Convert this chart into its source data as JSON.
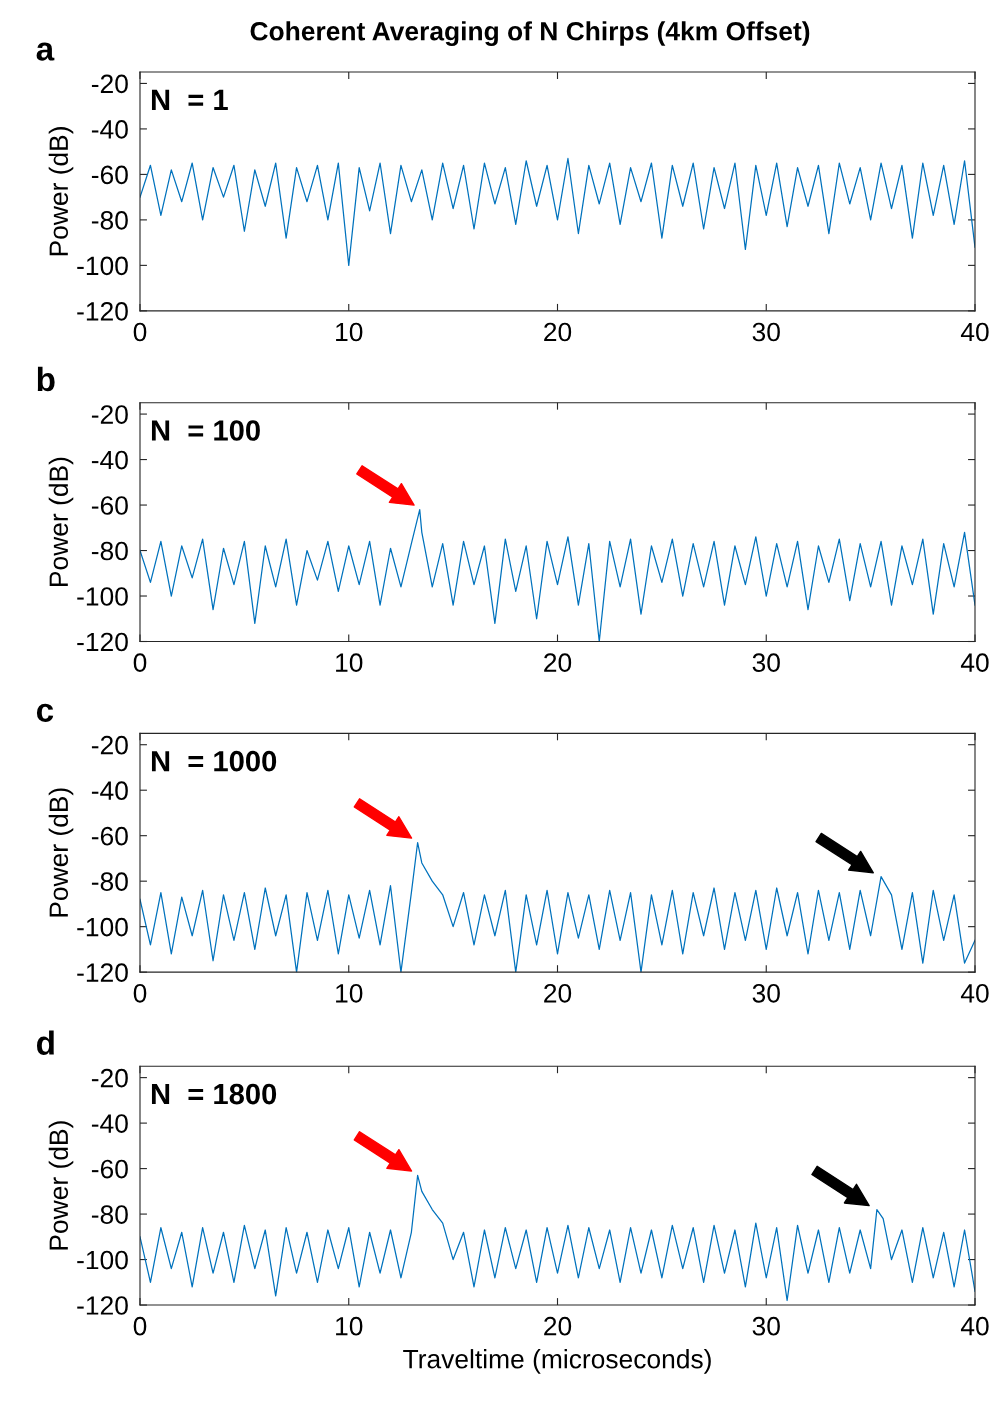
{
  "chart_data": [
    {
      "type": "line",
      "title": "Coherent Averaging of N Chirps (4km Offset)",
      "ylabel": "Power (dB)",
      "annotations": [
        "a",
        "N  = 1"
      ],
      "xlim": [
        0,
        40
      ],
      "xticks": [
        0,
        10,
        20,
        30,
        40
      ],
      "ylim": [
        -120,
        -15
      ],
      "yticks": [
        -120,
        -100,
        -80,
        -60,
        -40,
        -20
      ],
      "grid": false,
      "legend": false,
      "series": [
        {
          "color": "#0072bd",
          "x": [
            0,
            0.5,
            1,
            1.5,
            2,
            2.5,
            3,
            3.5,
            4,
            4.5,
            5,
            5.5,
            6,
            6.5,
            7,
            7.5,
            8,
            8.5,
            9,
            9.5,
            10,
            10.5,
            11,
            11.5,
            12,
            12.5,
            13,
            13.5,
            14,
            14.5,
            15,
            15.5,
            16,
            16.5,
            17,
            17.5,
            18,
            18.5,
            19,
            19.5,
            20,
            20.5,
            21,
            21.5,
            22,
            22.5,
            23,
            23.5,
            24,
            24.5,
            25,
            25.5,
            26,
            26.5,
            27,
            27.5,
            28,
            28.5,
            29,
            29.5,
            30,
            30.5,
            31,
            31.5,
            32,
            32.5,
            33,
            33.5,
            34,
            34.5,
            35,
            35.5,
            36,
            36.5,
            37,
            37.5,
            38,
            38.5,
            39,
            39.5,
            40
          ],
          "values": [
            -70,
            -56,
            -78,
            -58,
            -72,
            -55,
            -80,
            -57,
            -70,
            -56,
            -85,
            -58,
            -74,
            -55,
            -88,
            -57,
            -72,
            -56,
            -80,
            -55,
            -100,
            -57,
            -76,
            -55,
            -86,
            -56,
            -72,
            -58,
            -80,
            -55,
            -75,
            -56,
            -84,
            -55,
            -73,
            -57,
            -82,
            -54,
            -74,
            -56,
            -80,
            -53,
            -86,
            -56,
            -73,
            -55,
            -82,
            -57,
            -72,
            -55,
            -88,
            -56,
            -74,
            -55,
            -84,
            -57,
            -75,
            -55,
            -93,
            -56,
            -78,
            -55,
            -83,
            -57,
            -74,
            -56,
            -86,
            -55,
            -73,
            -57,
            -80,
            -55,
            -75,
            -56,
            -88,
            -55,
            -78,
            -56,
            -82,
            -54,
            -92
          ]
        }
      ]
    },
    {
      "type": "line",
      "ylabel": "Power (dB)",
      "annotations": [
        "b",
        "N  = 100"
      ],
      "xlim": [
        0,
        40
      ],
      "xticks": [
        0,
        10,
        20,
        30,
        40
      ],
      "ylim": [
        -120,
        -15
      ],
      "yticks": [
        -120,
        -100,
        -80,
        -60,
        -40,
        -20
      ],
      "grid": false,
      "legend": false,
      "series": [
        {
          "color": "#0072bd",
          "x": [
            0,
            0.5,
            1,
            1.5,
            2,
            2.5,
            3,
            3.5,
            4,
            4.5,
            5,
            5.5,
            6,
            6.5,
            7,
            7.5,
            8,
            8.5,
            9,
            9.5,
            10,
            10.5,
            11,
            11.5,
            12,
            12.5,
            13,
            13.4,
            13.5,
            14,
            14.5,
            15,
            15.5,
            16,
            16.5,
            17,
            17.5,
            18,
            18.5,
            19,
            19.5,
            20,
            20.5,
            21,
            21.5,
            22,
            22.5,
            23,
            23.5,
            24,
            24.5,
            25,
            25.5,
            26,
            26.5,
            27,
            27.5,
            28,
            28.5,
            29,
            29.5,
            30,
            30.5,
            31,
            31.5,
            32,
            32.5,
            33,
            33.5,
            34,
            34.5,
            35,
            35.5,
            36,
            36.5,
            37,
            37.5,
            38,
            38.5,
            39,
            39.5,
            40
          ],
          "values": [
            -80,
            -94,
            -76,
            -100,
            -78,
            -92,
            -75,
            -106,
            -79,
            -95,
            -76,
            -112,
            -78,
            -96,
            -75,
            -104,
            -80,
            -93,
            -76,
            -98,
            -78,
            -95,
            -76,
            -104,
            -79,
            -96,
            -77,
            -62,
            -72,
            -96,
            -77,
            -104,
            -76,
            -95,
            -78,
            -112,
            -75,
            -98,
            -78,
            -110,
            -76,
            -95,
            -74,
            -104,
            -77,
            -120,
            -76,
            -96,
            -75,
            -108,
            -78,
            -94,
            -75,
            -100,
            -77,
            -96,
            -76,
            -104,
            -78,
            -95,
            -74,
            -100,
            -77,
            -96,
            -76,
            -106,
            -78,
            -94,
            -75,
            -102,
            -77,
            -96,
            -76,
            -104,
            -78,
            -95,
            -75,
            -108,
            -77,
            -96,
            -72,
            -104
          ]
        }
      ]
    },
    {
      "type": "line",
      "ylabel": "Power (dB)",
      "annotations": [
        "c",
        "N  = 1000"
      ],
      "xlim": [
        0,
        40
      ],
      "xticks": [
        0,
        10,
        20,
        30,
        40
      ],
      "ylim": [
        -120,
        -15
      ],
      "yticks": [
        -120,
        -100,
        -80,
        -60,
        -40,
        -20
      ],
      "grid": false,
      "legend": false,
      "series": [
        {
          "color": "#0072bd",
          "x": [
            0,
            0.5,
            1,
            1.5,
            2,
            2.5,
            3,
            3.5,
            4,
            4.5,
            5,
            5.5,
            6,
            6.5,
            7,
            7.5,
            8,
            8.5,
            9,
            9.5,
            10,
            10.5,
            11,
            11.5,
            12,
            12.5,
            13,
            13.3,
            13.5,
            14,
            14.5,
            15,
            15.5,
            16,
            16.5,
            17,
            17.5,
            18,
            18.5,
            19,
            19.5,
            20,
            20.5,
            21,
            21.5,
            22,
            22.5,
            23,
            23.5,
            24,
            24.5,
            25,
            25.5,
            26,
            26.5,
            27,
            27.5,
            28,
            28.5,
            29,
            29.5,
            30,
            30.5,
            31,
            31.5,
            32,
            32.5,
            33,
            33.5,
            34,
            34.5,
            35,
            35.5,
            36,
            36.5,
            37,
            37.5,
            38,
            38.5,
            39,
            39.5,
            40
          ],
          "values": [
            -88,
            -108,
            -85,
            -112,
            -87,
            -104,
            -84,
            -115,
            -86,
            -106,
            -85,
            -110,
            -83,
            -104,
            -86,
            -120,
            -85,
            -106,
            -84,
            -112,
            -86,
            -105,
            -84,
            -108,
            -82,
            -120,
            -85,
            -63,
            -72,
            -80,
            -86,
            -100,
            -85,
            -108,
            -86,
            -104,
            -84,
            -120,
            -86,
            -108,
            -84,
            -112,
            -85,
            -105,
            -86,
            -110,
            -84,
            -106,
            -85,
            -120,
            -86,
            -108,
            -84,
            -112,
            -85,
            -104,
            -83,
            -110,
            -85,
            -106,
            -84,
            -110,
            -83,
            -104,
            -85,
            -112,
            -84,
            -106,
            -85,
            -110,
            -84,
            -104,
            -78,
            -86,
            -110,
            -85,
            -116,
            -84,
            -106,
            -86,
            -116,
            -106
          ]
        }
      ]
    },
    {
      "type": "line",
      "xlabel": "Traveltime (microseconds)",
      "ylabel": "Power (dB)",
      "annotations": [
        "d",
        "N  = 1800"
      ],
      "xlim": [
        0,
        40
      ],
      "xticks": [
        0,
        10,
        20,
        30,
        40
      ],
      "ylim": [
        -120,
        -15
      ],
      "yticks": [
        -120,
        -100,
        -80,
        -60,
        -40,
        -20
      ],
      "grid": false,
      "legend": false,
      "series": [
        {
          "color": "#0072bd",
          "x": [
            0,
            0.5,
            1,
            1.5,
            2,
            2.5,
            3,
            3.5,
            4,
            4.5,
            5,
            5.5,
            6,
            6.5,
            7,
            7.5,
            8,
            8.5,
            9,
            9.5,
            10,
            10.5,
            11,
            11.5,
            12,
            12.5,
            13,
            13.3,
            13.5,
            14,
            14.5,
            15,
            15.5,
            16,
            16.5,
            17,
            17.5,
            18,
            18.5,
            19,
            19.5,
            20,
            20.5,
            21,
            21.5,
            22,
            22.5,
            23,
            23.5,
            24,
            24.5,
            25,
            25.5,
            26,
            26.5,
            27,
            27.5,
            28,
            28.5,
            29,
            29.5,
            30,
            30.5,
            31,
            31.5,
            32,
            32.5,
            33,
            33.5,
            34,
            34.5,
            35,
            35.3,
            35.6,
            36,
            36.5,
            37,
            37.5,
            38,
            38.5,
            39,
            39.5,
            40
          ],
          "values": [
            -90,
            -110,
            -86,
            -104,
            -88,
            -112,
            -86,
            -106,
            -88,
            -110,
            -85,
            -104,
            -87,
            -116,
            -86,
            -106,
            -88,
            -110,
            -87,
            -104,
            -86,
            -112,
            -88,
            -106,
            -87,
            -108,
            -88,
            -63,
            -70,
            -78,
            -84,
            -100,
            -88,
            -112,
            -87,
            -108,
            -86,
            -104,
            -87,
            -110,
            -86,
            -106,
            -85,
            -108,
            -86,
            -104,
            -87,
            -110,
            -86,
            -106,
            -87,
            -108,
            -85,
            -104,
            -86,
            -110,
            -85,
            -106,
            -87,
            -112,
            -84,
            -108,
            -86,
            -118,
            -85,
            -106,
            -87,
            -110,
            -86,
            -106,
            -87,
            -104,
            -78,
            -82,
            -100,
            -87,
            -110,
            -86,
            -108,
            -88,
            -112,
            -87,
            -114
          ]
        }
      ]
    }
  ]
}
